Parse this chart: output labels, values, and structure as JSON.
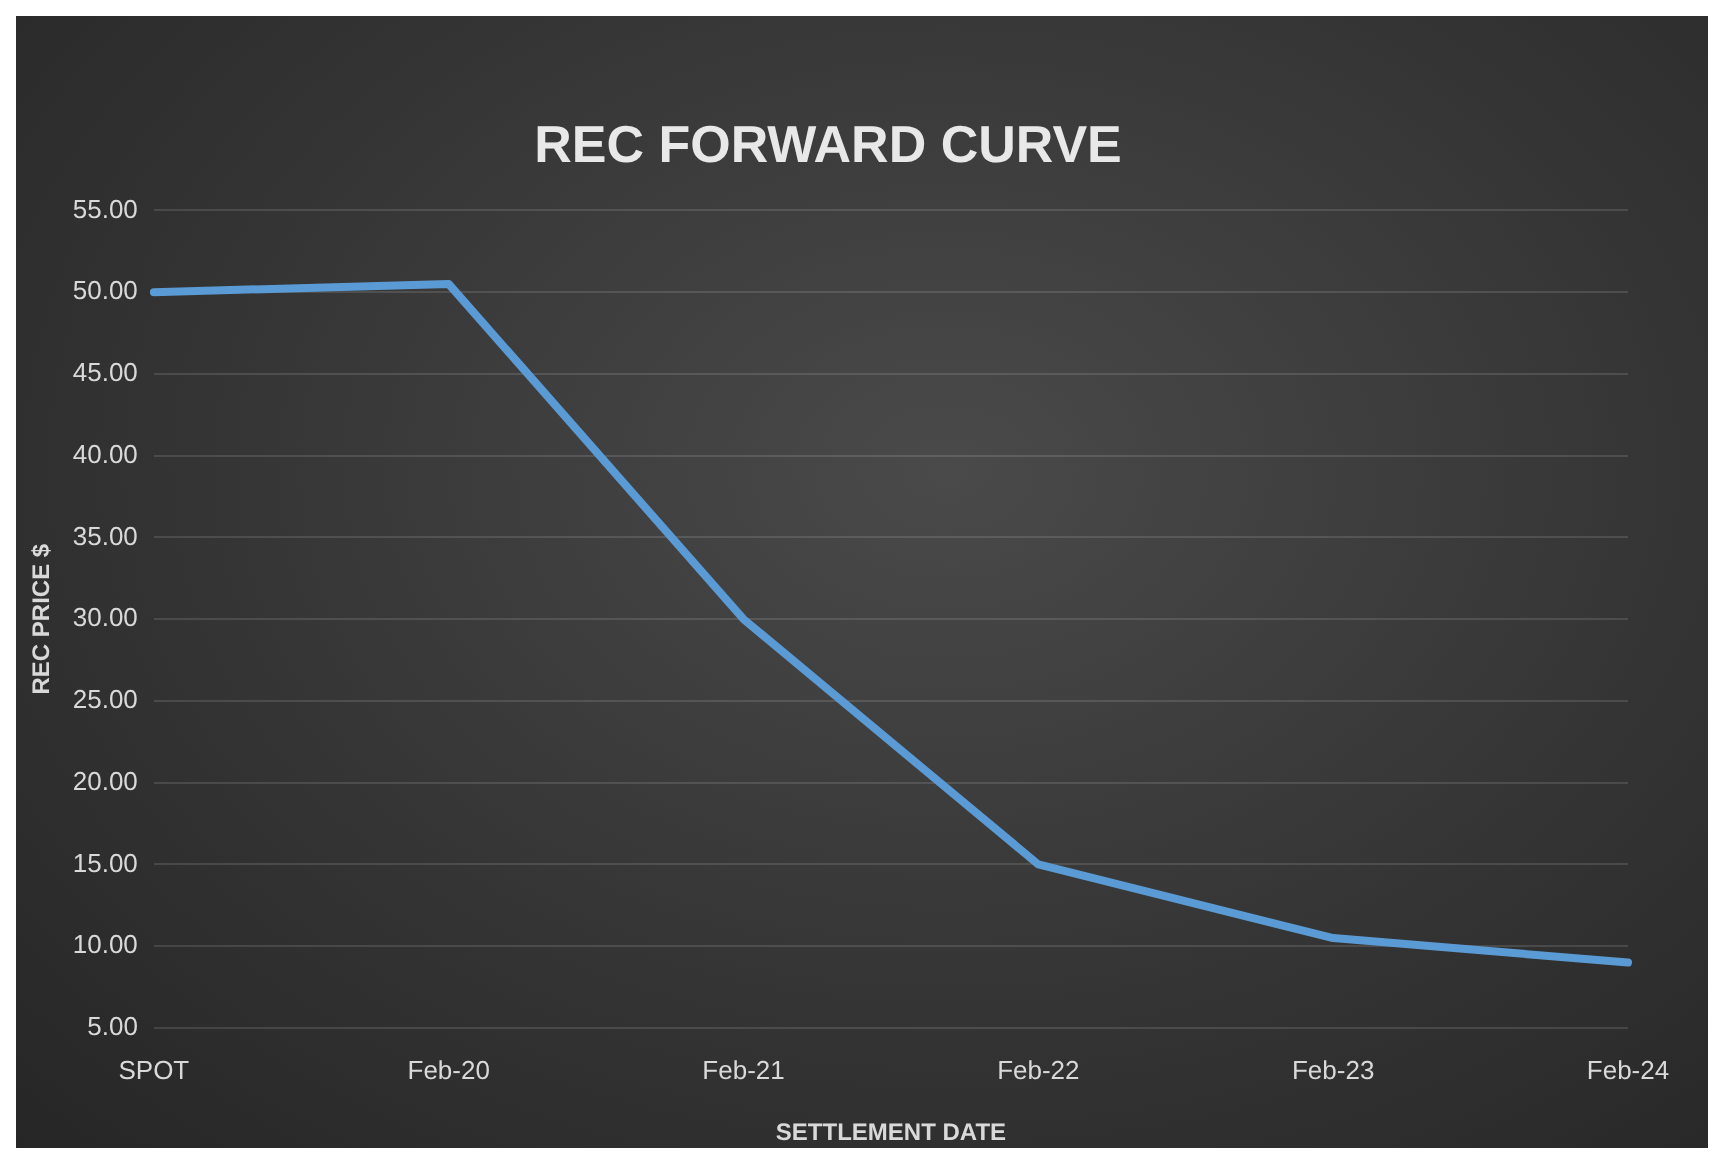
{
  "chart_data": {
    "type": "line",
    "title": "REC FORWARD CURVE",
    "xlabel": "SETTLEMENT DATE",
    "ylabel": "REC PRICE $",
    "categories": [
      "SPOT",
      "Feb-20",
      "Feb-21",
      "Feb-22",
      "Feb-23",
      "Feb-24"
    ],
    "series": [
      {
        "color": "#5b9bd5",
        "values": [
          50,
          50.5,
          30,
          15,
          10.5,
          9
        ]
      }
    ],
    "ylim": [
      5,
      55
    ],
    "yticks": [
      {
        "value": 5,
        "label": "5.00"
      },
      {
        "value": 10,
        "label": "10.00"
      },
      {
        "value": 15,
        "label": "15.00"
      },
      {
        "value": 20,
        "label": "20.00"
      },
      {
        "value": 25,
        "label": "25.00"
      },
      {
        "value": 30,
        "label": "30.00"
      },
      {
        "value": 35,
        "label": "35.00"
      },
      {
        "value": 40,
        "label": "40.00"
      },
      {
        "value": 45,
        "label": "45.00"
      },
      {
        "value": 50,
        "label": "50.00"
      },
      {
        "value": 55,
        "label": "55.00"
      }
    ],
    "grid": "y",
    "legend": false,
    "marker": "none",
    "line_style": "solid"
  }
}
